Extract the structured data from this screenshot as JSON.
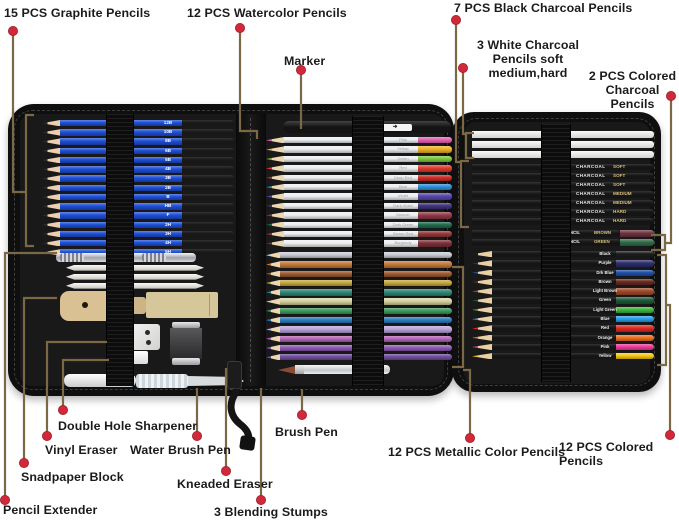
{
  "colors": {
    "leader": "#7b6945",
    "dot": "#d2293a"
  },
  "labels": {
    "graphite": "15 PCS Graphite Pencils",
    "watercolor": "12 PCS Watercolor Pencils",
    "marker": "Marker",
    "black_charcoal": "7 PCS Black Charcoal Pencils",
    "white_charcoal": "3 White Charcoal\nPencils soft medium,hard",
    "colored_charcoal": "2 PCS Colored\nCharcoal Pencils",
    "pencil_extender": "Pencil Extender",
    "sandpaper_block": "Snadpaper Block",
    "vinyl_eraser": "Vinyl Eraser",
    "double_hole_sharpener": "Double Hole Sharpener",
    "water_brush_pen": "Water Brush Pen",
    "kneaded_eraser": "Kneaded Eraser",
    "blending_stumps": "3 Blending Stumps",
    "brush_pen": "Brush Pen",
    "metallic": "12 PCS Metallic Color Pencils",
    "colored_pencils": "12 PCS Colored Pencils"
  },
  "marker_logo": "➔",
  "graphite_pencils": [
    {
      "grade": "12B"
    },
    {
      "grade": "10B"
    },
    {
      "grade": "8B"
    },
    {
      "grade": "6B"
    },
    {
      "grade": "5B"
    },
    {
      "grade": "4B"
    },
    {
      "grade": "3B"
    },
    {
      "grade": "2B"
    },
    {
      "grade": "B"
    },
    {
      "grade": "HB"
    },
    {
      "grade": "F"
    },
    {
      "grade": "2H"
    },
    {
      "grade": "3H"
    },
    {
      "grade": "4H"
    },
    {
      "grade": "5H"
    }
  ],
  "watercolor_pencils": [
    {
      "name": "Pink",
      "color": "#e964b6"
    },
    {
      "name": "Yellow",
      "color": "#f0b125"
    },
    {
      "name": "Green",
      "color": "#7dc63d"
    },
    {
      "name": "Red",
      "color": "#e23a2d"
    },
    {
      "name": "Deep Red",
      "color": "#cf2b26"
    },
    {
      "name": "Blue",
      "color": "#2f8fd8"
    },
    {
      "name": "Violet",
      "color": "#5747ae"
    },
    {
      "name": "Dark Violet",
      "color": "#42357f"
    },
    {
      "name": "Maroon",
      "color": "#8f3a46"
    },
    {
      "name": "Dark Green",
      "color": "#1f6b4d"
    },
    {
      "name": "Brown Red",
      "color": "#94383a"
    },
    {
      "name": "Burgundy",
      "color": "#7c2f38"
    }
  ],
  "metallic_pencils": [
    {
      "color": "#c9ccd4"
    },
    {
      "color": "#c67a3c"
    },
    {
      "color": "#a05a32"
    },
    {
      "color": "#c8a93e"
    },
    {
      "color": "#2f8676"
    },
    {
      "color": "#d6d2a0"
    },
    {
      "color": "#3f9a5f"
    },
    {
      "color": "#2e7fc2"
    },
    {
      "color": "#b9a5dd"
    },
    {
      "color": "#b667b8"
    },
    {
      "color": "#8f5bb5"
    },
    {
      "color": "#6f4e9c"
    }
  ],
  "white_charcoal_pencils": [
    {},
    {},
    {}
  ],
  "black_charcoal_pencils": [
    {
      "word": "CHARCOAL",
      "grade": "SOFT"
    },
    {
      "word": "CHARCOAL",
      "grade": "SOFT"
    },
    {
      "word": "CHARCOAL",
      "grade": "SOFT"
    },
    {
      "word": "CHARCOAL",
      "grade": "MEDIUM"
    },
    {
      "word": "CHARCOAL",
      "grade": "MEDIUM"
    },
    {
      "word": "CHARCOAL",
      "grade": "HARD"
    },
    {
      "word": "CHARCOAL",
      "grade": "HARD"
    }
  ],
  "colored_charcoal_pencils": [
    {
      "word": "PENCIL",
      "name": "BROWN",
      "color": "#6e3340"
    },
    {
      "word": "PENCIL",
      "name": "GREEN",
      "color": "#2f6b46"
    }
  ],
  "colored_pencils_list": [
    {
      "name": "Black",
      "color": "#1e1e1e"
    },
    {
      "name": "Purple",
      "color": "#2e2e6e"
    },
    {
      "name": "Drk Blue",
      "color": "#1e4fa8"
    },
    {
      "name": "Brown",
      "color": "#6b2a20"
    },
    {
      "name": "Light Brown",
      "color": "#a04a28"
    },
    {
      "name": "Green",
      "color": "#1d5c38"
    },
    {
      "name": "Light Green",
      "color": "#3cb83c"
    },
    {
      "name": "Blue",
      "color": "#28a0e8"
    },
    {
      "name": "Red",
      "color": "#e02820"
    },
    {
      "name": "Orange",
      "color": "#f07020"
    },
    {
      "name": "Pink",
      "color": "#ee3c9c"
    },
    {
      "name": "Yellow",
      "color": "#f8c810"
    }
  ]
}
